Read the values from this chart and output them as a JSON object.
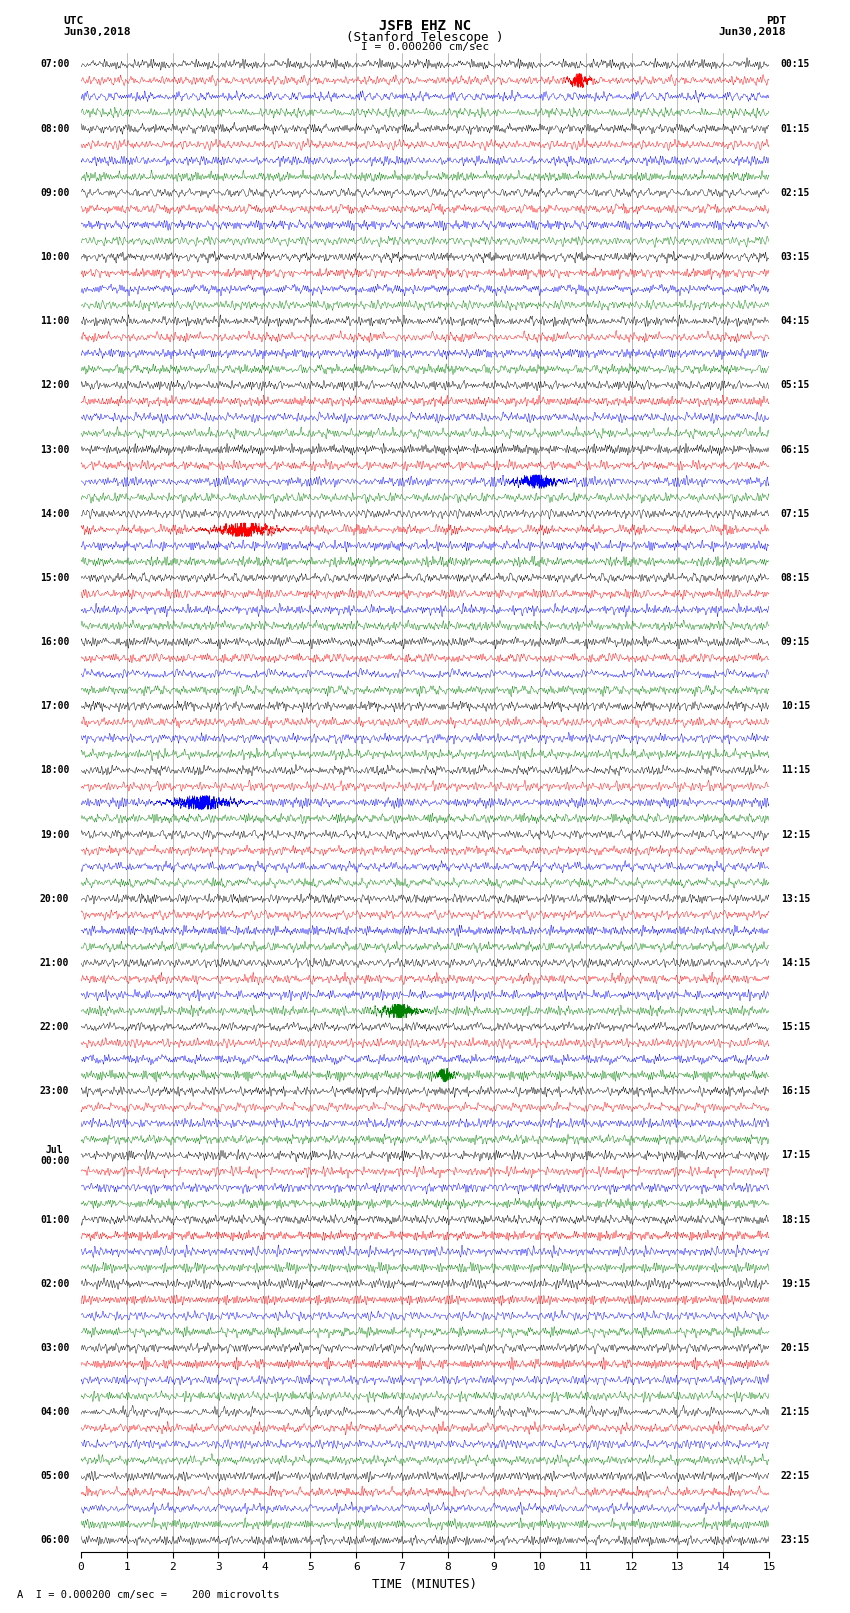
{
  "title_line1": "JSFB EHZ NC",
  "title_line2": "(Stanford Telescope )",
  "scale_label": "I = 0.000200 cm/sec",
  "left_label_top": "UTC",
  "left_label_date": "Jun30,2018",
  "right_label_top": "PDT",
  "right_label_date": "Jun30,2018",
  "xlabel": "TIME (MINUTES)",
  "footer": "A  I = 0.000200 cm/sec =    200 microvolts",
  "utc_times_labeled": [
    "07:00",
    "08:00",
    "09:00",
    "10:00",
    "11:00",
    "12:00",
    "13:00",
    "14:00",
    "15:00",
    "16:00",
    "17:00",
    "18:00",
    "19:00",
    "20:00",
    "21:00",
    "22:00",
    "23:00",
    "Jul\n00:00",
    "01:00",
    "02:00",
    "03:00",
    "04:00",
    "05:00",
    "06:00"
  ],
  "utc_row_indices": [
    0,
    4,
    8,
    12,
    16,
    20,
    24,
    28,
    32,
    36,
    40,
    44,
    48,
    52,
    56,
    60,
    64,
    68,
    72,
    76,
    80,
    84,
    88,
    92
  ],
  "pdt_times_labeled": [
    "00:15",
    "01:15",
    "02:15",
    "03:15",
    "04:15",
    "05:15",
    "06:15",
    "07:15",
    "08:15",
    "09:15",
    "10:15",
    "11:15",
    "12:15",
    "13:15",
    "14:15",
    "15:15",
    "16:15",
    "17:15",
    "18:15",
    "19:15",
    "20:15",
    "21:15",
    "22:15",
    "23:15"
  ],
  "pdt_row_indices": [
    0,
    4,
    8,
    12,
    16,
    20,
    24,
    28,
    32,
    36,
    40,
    44,
    48,
    52,
    56,
    60,
    64,
    68,
    72,
    76,
    80,
    84,
    88,
    92
  ],
  "colors": [
    "black",
    "red",
    "blue",
    "green"
  ],
  "n_rows": 93,
  "n_minutes": 15,
  "figsize": [
    8.5,
    16.13
  ],
  "dpi": 100,
  "bg_color": "white",
  "trace_amplitude": 0.42,
  "noise_base": 0.12,
  "line_width": 0.3,
  "xticks": [
    0,
    1,
    2,
    3,
    4,
    5,
    6,
    7,
    8,
    9,
    10,
    11,
    12,
    13,
    14,
    15
  ],
  "grid_color": "#888888",
  "grid_lw": 0.4
}
